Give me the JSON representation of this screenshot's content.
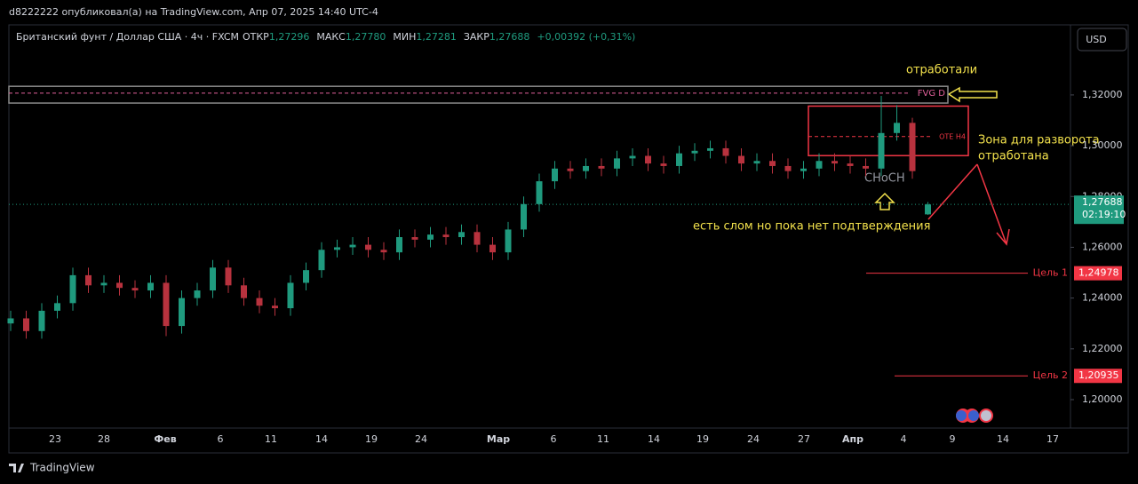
{
  "header": "d8222222 опубликовал(а) на TradingView.com, Апр 07, 2025 14:40 UTC-4",
  "footer": "TradingView",
  "chart_data": {
    "type": "candlestick",
    "title": "Британский фунт / Доллар США · 4ч · FXCM",
    "ohlc_legend": [
      {
        "label": "ОТКР",
        "value": 1.27296,
        "value_label": "1,27296"
      },
      {
        "label": "МАКС",
        "value": 1.2778,
        "value_label": "1,27780"
      },
      {
        "label": "МИН",
        "value": 1.27281,
        "value_label": "1,27281"
      },
      {
        "label": "ЗАКР",
        "value": 1.27688,
        "value_label": "1,27688"
      }
    ],
    "change": "+0,00392 (+0,31%)",
    "currency": "USD",
    "up_color": "#1f9a7e",
    "down_color": "#b8323e",
    "open": [
      1.23,
      1.232,
      1.227,
      1.235,
      1.238,
      1.249,
      1.245,
      1.246,
      1.244,
      1.243,
      1.246,
      1.229,
      1.24,
      1.243,
      1.252,
      1.245,
      1.24,
      1.237,
      1.236,
      1.246,
      1.251,
      1.259,
      1.26,
      1.261,
      1.259,
      1.258,
      1.264,
      1.263,
      1.265,
      1.264,
      1.266,
      1.261,
      1.258,
      1.267,
      1.277,
      1.286,
      1.291,
      1.29,
      1.292,
      1.291,
      1.295,
      1.296,
      1.293,
      1.292,
      1.297,
      1.298,
      1.299,
      1.296,
      1.293,
      1.294,
      1.292,
      1.29,
      1.291,
      1.294,
      1.293,
      1.292,
      1.291,
      1.305,
      1.309,
      1.27296
    ],
    "high": [
      1.235,
      1.235,
      1.238,
      1.241,
      1.252,
      1.252,
      1.249,
      1.249,
      1.247,
      1.249,
      1.249,
      1.243,
      1.246,
      1.255,
      1.255,
      1.248,
      1.243,
      1.24,
      1.249,
      1.254,
      1.262,
      1.263,
      1.264,
      1.264,
      1.262,
      1.267,
      1.267,
      1.268,
      1.268,
      1.269,
      1.269,
      1.264,
      1.27,
      1.28,
      1.289,
      1.294,
      1.294,
      1.295,
      1.295,
      1.298,
      1.299,
      1.299,
      1.296,
      1.3,
      1.301,
      1.302,
      1.302,
      1.299,
      1.297,
      1.297,
      1.295,
      1.294,
      1.297,
      1.297,
      1.296,
      1.295,
      1.3196,
      1.316,
      1.311,
      1.2778
    ],
    "low": [
      1.227,
      1.224,
      1.224,
      1.232,
      1.235,
      1.242,
      1.242,
      1.241,
      1.24,
      1.24,
      1.225,
      1.226,
      1.237,
      1.24,
      1.242,
      1.237,
      1.234,
      1.233,
      1.233,
      1.243,
      1.248,
      1.256,
      1.257,
      1.256,
      1.255,
      1.255,
      1.26,
      1.26,
      1.261,
      1.261,
      1.258,
      1.255,
      1.255,
      1.264,
      1.274,
      1.283,
      1.287,
      1.287,
      1.288,
      1.288,
      1.292,
      1.29,
      1.289,
      1.289,
      1.294,
      1.295,
      1.293,
      1.29,
      1.29,
      1.289,
      1.287,
      1.287,
      1.288,
      1.29,
      1.289,
      1.288,
      1.288,
      1.302,
      1.287,
      1.27281
    ],
    "close": [
      1.232,
      1.227,
      1.235,
      1.238,
      1.249,
      1.245,
      1.246,
      1.244,
      1.243,
      1.246,
      1.229,
      1.24,
      1.243,
      1.252,
      1.245,
      1.24,
      1.237,
      1.236,
      1.246,
      1.251,
      1.259,
      1.26,
      1.261,
      1.259,
      1.258,
      1.264,
      1.263,
      1.265,
      1.264,
      1.266,
      1.261,
      1.258,
      1.267,
      1.277,
      1.286,
      1.291,
      1.29,
      1.292,
      1.291,
      1.295,
      1.296,
      1.293,
      1.292,
      1.297,
      1.298,
      1.299,
      1.296,
      1.293,
      1.294,
      1.292,
      1.29,
      1.291,
      1.294,
      1.293,
      1.292,
      1.291,
      1.305,
      1.309,
      1.29,
      1.27688
    ],
    "ylim": [
      1.1888,
      1.3476
    ],
    "yticks": [
      {
        "value": 1.32,
        "label": "1,32000"
      },
      {
        "value": 1.3,
        "label": "1,30000"
      },
      {
        "value": 1.28,
        "label": "1,28000"
      },
      {
        "value": 1.26,
        "label": "1,26000"
      },
      {
        "value": 1.24,
        "label": "1,24000"
      },
      {
        "value": 1.22,
        "label": "1,22000"
      },
      {
        "value": 1.2,
        "label": "1,20000"
      }
    ],
    "x_labels": [
      "23",
      "28",
      "Фев",
      "6",
      "11",
      "14",
      "19",
      "24",
      "Мар",
      "6",
      "11",
      "14",
      "19",
      "24",
      "27",
      "Апр",
      "4",
      "9",
      "14",
      "17"
    ],
    "last_price": {
      "value": 1.27688,
      "label": "1,27688",
      "countdown": "02:19:10"
    },
    "zones": [
      {
        "label": "FVG D",
        "top": 1.3234,
        "bottom": 1.3168,
        "mid": 1.3207
      },
      {
        "label": "OTE H4",
        "top": 1.3156,
        "bottom": 1.2961,
        "mid": 1.3036
      }
    ],
    "targets": [
      {
        "label": "Цель 1",
        "value": 1.24978,
        "value_label": "1,24978"
      },
      {
        "label": "Цель 2",
        "value": 1.20935,
        "value_label": "1,20935"
      }
    ],
    "annotations": [
      "отработали",
      "Зона для разворота",
      "отработана",
      "CHoCH",
      "есть слом но пока нет подтверждения"
    ]
  }
}
